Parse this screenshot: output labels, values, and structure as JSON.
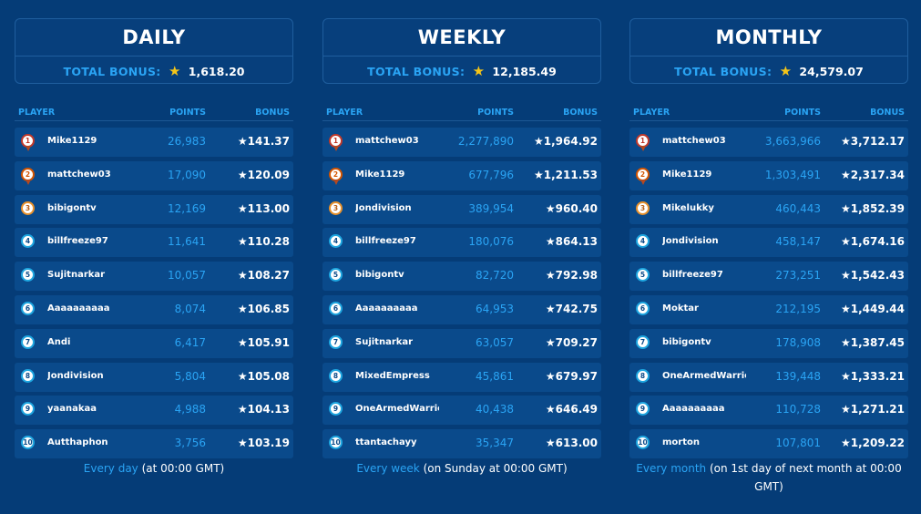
{
  "star_glyph": "★",
  "colors": {
    "background": "#053c77",
    "accent": "#2aa4f4",
    "star": "#f5c518",
    "row": "#0a4a8b"
  },
  "periods": [
    {
      "title": "DAILY",
      "total_label": "TOTAL BONUS:",
      "total_value": "1,618.20",
      "headers": {
        "player": "PLAYER",
        "points": "POINTS",
        "bonus": "BONUS"
      },
      "footer_highlight": "Every day",
      "footer_text": " (at 00:00 GMT)",
      "rows": [
        {
          "rank": "1",
          "name": "Mike1129",
          "points": "26,983",
          "bonus": "★141.37"
        },
        {
          "rank": "2",
          "name": "mattchew03",
          "points": "17,090",
          "bonus": "★120.09"
        },
        {
          "rank": "3",
          "name": "bibigontv",
          "points": "12,169",
          "bonus": "★113.00"
        },
        {
          "rank": "4",
          "name": "billfreeze97",
          "points": "11,641",
          "bonus": "★110.28"
        },
        {
          "rank": "5",
          "name": "Sujitnarkar",
          "points": "10,057",
          "bonus": "★108.27"
        },
        {
          "rank": "6",
          "name": "Aaaaaaaaaa",
          "points": "8,074",
          "bonus": "★106.85"
        },
        {
          "rank": "7",
          "name": "Andi",
          "points": "6,417",
          "bonus": "★105.91"
        },
        {
          "rank": "8",
          "name": "Jondivision",
          "points": "5,804",
          "bonus": "★105.08"
        },
        {
          "rank": "9",
          "name": "yaanakaa",
          "points": "4,988",
          "bonus": "★104.13"
        },
        {
          "rank": "10",
          "name": "Autthaphon",
          "points": "3,756",
          "bonus": "★103.19"
        }
      ]
    },
    {
      "title": "WEEKLY",
      "total_label": "TOTAL BONUS:",
      "total_value": "12,185.49",
      "headers": {
        "player": "PLAYER",
        "points": "POINTS",
        "bonus": "BONUS"
      },
      "footer_highlight": "Every week",
      "footer_text": " (on Sunday at 00:00 GMT)",
      "rows": [
        {
          "rank": "1",
          "name": "mattchew03",
          "points": "2,277,890",
          "bonus": "★1,964.92"
        },
        {
          "rank": "2",
          "name": "Mike1129",
          "points": "677,796",
          "bonus": "★1,211.53"
        },
        {
          "rank": "3",
          "name": "Jondivision",
          "points": "389,954",
          "bonus": "★960.40"
        },
        {
          "rank": "4",
          "name": "billfreeze97",
          "points": "180,076",
          "bonus": "★864.13"
        },
        {
          "rank": "5",
          "name": "bibigontv",
          "points": "82,720",
          "bonus": "★792.98"
        },
        {
          "rank": "6",
          "name": "Aaaaaaaaaa",
          "points": "64,953",
          "bonus": "★742.75"
        },
        {
          "rank": "7",
          "name": "Sujitnarkar",
          "points": "63,057",
          "bonus": "★709.27"
        },
        {
          "rank": "8",
          "name": "MixedEmpress",
          "points": "45,861",
          "bonus": "★679.97"
        },
        {
          "rank": "9",
          "name": "OneArmedWarrior",
          "points": "40,438",
          "bonus": "★646.49"
        },
        {
          "rank": "10",
          "name": "ttantachayy",
          "points": "35,347",
          "bonus": "★613.00"
        }
      ]
    },
    {
      "title": "MONTHLY",
      "total_label": "TOTAL BONUS:",
      "total_value": "24,579.07",
      "headers": {
        "player": "PLAYER",
        "points": "POINTS",
        "bonus": "BONUS"
      },
      "footer_highlight": "Every month",
      "footer_text": " (on 1st day of next month at 00:00 GMT)",
      "rows": [
        {
          "rank": "1",
          "name": "mattchew03",
          "points": "3,663,966",
          "bonus": "★3,712.17"
        },
        {
          "rank": "2",
          "name": "Mike1129",
          "points": "1,303,491",
          "bonus": "★2,317.34"
        },
        {
          "rank": "3",
          "name": "Mikelukky",
          "points": "460,443",
          "bonus": "★1,852.39"
        },
        {
          "rank": "4",
          "name": "Jondivision",
          "points": "458,147",
          "bonus": "★1,674.16"
        },
        {
          "rank": "5",
          "name": "billfreeze97",
          "points": "273,251",
          "bonus": "★1,542.43"
        },
        {
          "rank": "6",
          "name": "Moktar",
          "points": "212,195",
          "bonus": "★1,449.44"
        },
        {
          "rank": "7",
          "name": "bibigontv",
          "points": "178,908",
          "bonus": "★1,387.45"
        },
        {
          "rank": "8",
          "name": "OneArmedWarrior",
          "points": "139,448",
          "bonus": "★1,333.21"
        },
        {
          "rank": "9",
          "name": "Aaaaaaaaaa",
          "points": "110,728",
          "bonus": "★1,271.21"
        },
        {
          "rank": "10",
          "name": "morton",
          "points": "107,801",
          "bonus": "★1,209.22"
        }
      ]
    }
  ]
}
